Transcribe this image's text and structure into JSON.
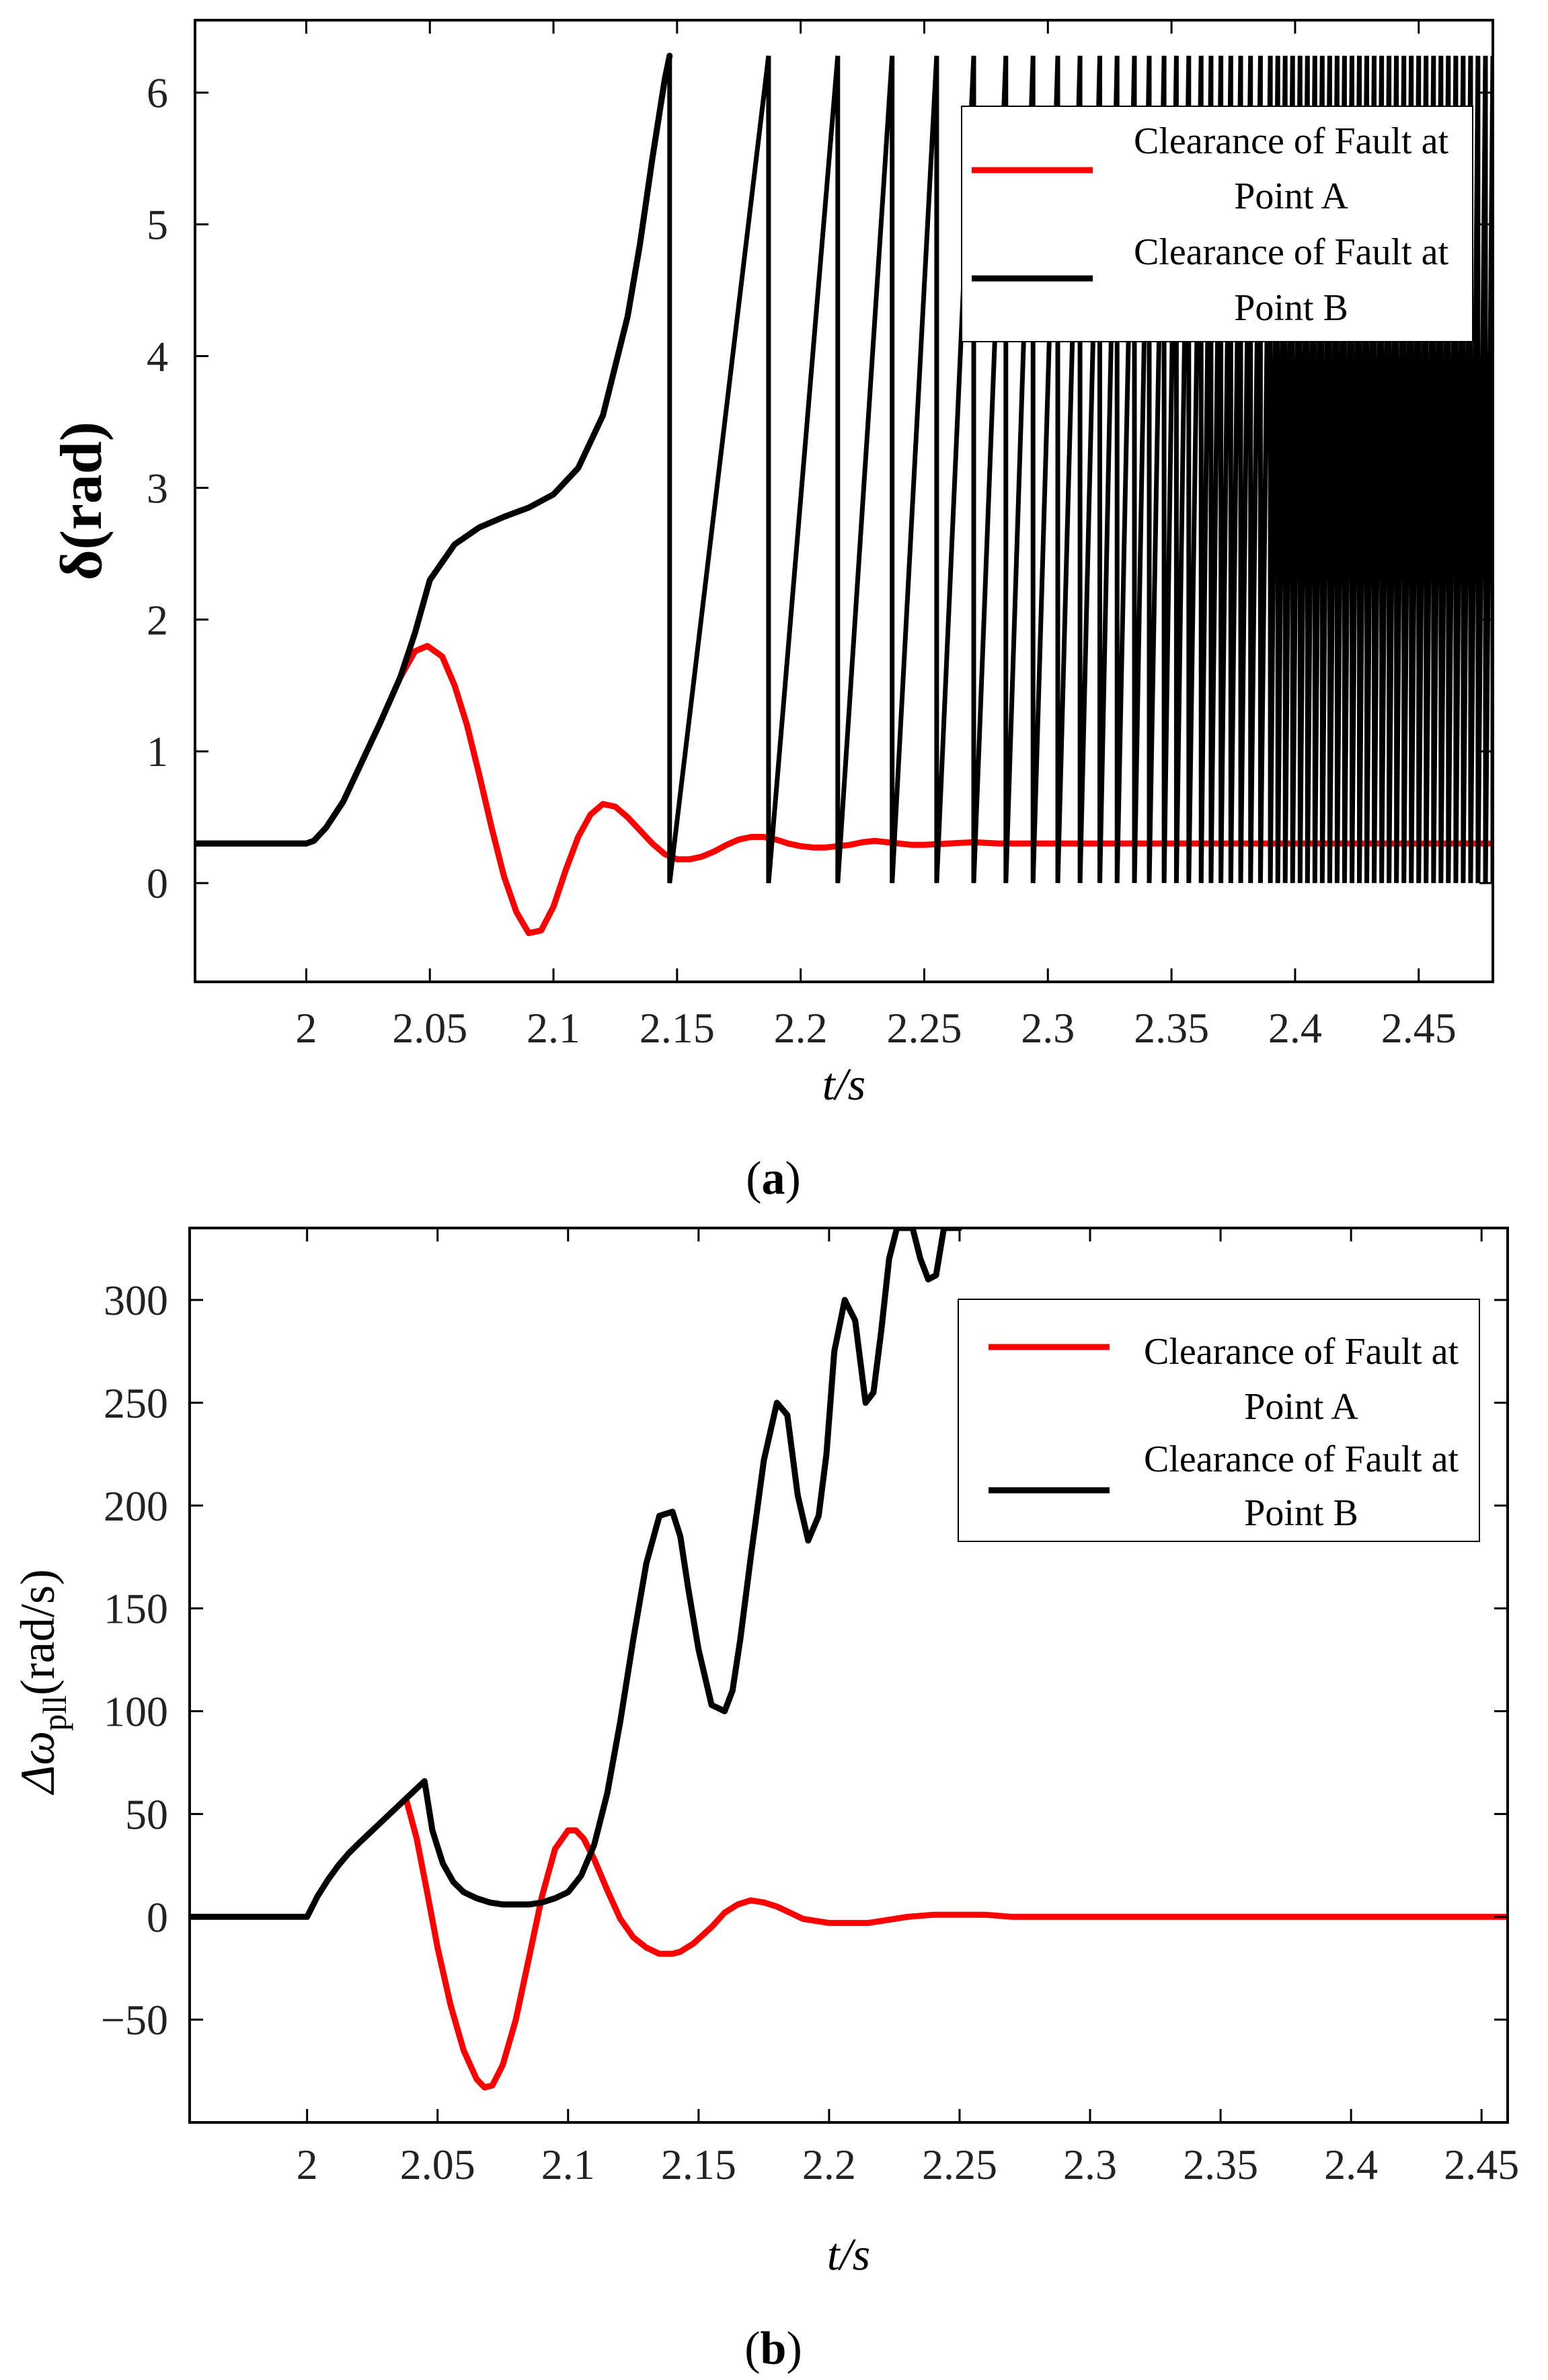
{
  "chart_data": [
    {
      "type": "line",
      "panel_label": "a",
      "title": "",
      "xlabel": "t/s",
      "ylabel": "δ(rad)",
      "xlim": [
        1.955,
        2.48
      ],
      "ylim": [
        -0.75,
        6.55
      ],
      "xticks": [
        2,
        2.05,
        2.1,
        2.15,
        2.2,
        2.25,
        2.3,
        2.35,
        2.4,
        2.45
      ],
      "xtick_labels": [
        "2",
        "2.05",
        "2.1",
        "2.15",
        "2.2",
        "2.25",
        "2.3",
        "2.35",
        "2.4",
        "2.45"
      ],
      "yticks": [
        0,
        1,
        2,
        3,
        4,
        5,
        6
      ],
      "ytick_labels": [
        "0",
        "1",
        "2",
        "3",
        "4",
        "5",
        "6"
      ],
      "grid": false,
      "legend_position": "top-right",
      "series": [
        {
          "name": "Clearance of Fault at Point A",
          "legend_lines": [
            "Clearance of Fault at",
            "Point A"
          ],
          "color": "#ff0000",
          "x": [
            1.955,
            2.0,
            2.003,
            2.008,
            2.015,
            2.022,
            2.03,
            2.038,
            2.044,
            2.049,
            2.055,
            2.06,
            2.065,
            2.07,
            2.075,
            2.08,
            2.085,
            2.09,
            2.095,
            2.1,
            2.105,
            2.11,
            2.115,
            2.12,
            2.125,
            2.13,
            2.135,
            2.14,
            2.145,
            2.15,
            2.155,
            2.16,
            2.165,
            2.17,
            2.175,
            2.18,
            2.185,
            2.19,
            2.195,
            2.2,
            2.205,
            2.21,
            2.215,
            2.22,
            2.225,
            2.23,
            2.235,
            2.24,
            2.245,
            2.25,
            2.26,
            2.27,
            2.28,
            2.29,
            2.3,
            2.32,
            2.35,
            2.4,
            2.45,
            2.48
          ],
          "y": [
            0.3,
            0.3,
            0.32,
            0.42,
            0.62,
            0.9,
            1.22,
            1.56,
            1.76,
            1.8,
            1.72,
            1.5,
            1.2,
            0.82,
            0.42,
            0.05,
            -0.22,
            -0.38,
            -0.36,
            -0.18,
            0.1,
            0.35,
            0.52,
            0.6,
            0.58,
            0.5,
            0.4,
            0.3,
            0.22,
            0.18,
            0.18,
            0.2,
            0.24,
            0.29,
            0.33,
            0.35,
            0.35,
            0.33,
            0.3,
            0.28,
            0.27,
            0.27,
            0.28,
            0.29,
            0.31,
            0.32,
            0.31,
            0.3,
            0.29,
            0.29,
            0.3,
            0.31,
            0.3,
            0.3,
            0.3,
            0.3,
            0.3,
            0.3,
            0.3,
            0.3
          ]
        },
        {
          "name": "Clearance of Fault at Point B",
          "legend_lines": [
            "Clearance of Fault at",
            "Point B"
          ],
          "color": "#000000",
          "note": "after ~2.147 s the angle wraps between 0 and 2π with a shrinking period",
          "x": [
            1.955,
            2.0,
            2.003,
            2.008,
            2.015,
            2.022,
            2.03,
            2.038,
            2.044,
            2.05,
            2.06,
            2.07,
            2.08,
            2.09,
            2.1,
            2.11,
            2.12,
            2.13,
            2.135,
            2.14,
            2.145,
            2.147
          ],
          "y": [
            0.3,
            0.3,
            0.32,
            0.42,
            0.62,
            0.9,
            1.22,
            1.56,
            1.9,
            2.3,
            2.57,
            2.7,
            2.78,
            2.85,
            2.95,
            3.15,
            3.55,
            4.3,
            4.85,
            5.5,
            6.1,
            6.28
          ],
          "wrap_times": [
            2.147,
            2.187,
            2.215,
            2.237,
            2.255,
            2.27,
            2.283,
            2.294,
            2.304,
            2.313,
            2.321,
            2.328,
            2.335,
            2.341,
            2.347,
            2.352,
            2.357,
            2.362,
            2.366,
            2.37,
            2.374,
            2.378,
            2.382,
            2.386,
            2.39,
            2.393,
            2.396,
            2.399,
            2.402,
            2.405,
            2.408,
            2.411,
            2.414,
            2.417,
            2.42,
            2.423,
            2.426,
            2.429,
            2.432,
            2.435,
            2.438,
            2.441,
            2.444,
            2.447,
            2.45,
            2.453,
            2.456,
            2.459,
            2.462,
            2.465,
            2.468,
            2.471,
            2.474,
            2.477,
            2.48
          ],
          "wrap_low": 0,
          "wrap_high": 6.28
        }
      ]
    },
    {
      "type": "line",
      "panel_label": "b",
      "title": "",
      "xlabel": "t/s",
      "ylabel_main": "Δω",
      "ylabel_sub": "pll",
      "ylabel_tail": "(rad/s)",
      "xlim": [
        1.955,
        2.46
      ],
      "ylim": [
        -100,
        335
      ],
      "xticks": [
        2,
        2.05,
        2.1,
        2.15,
        2.2,
        2.25,
        2.3,
        2.35,
        2.4,
        2.45
      ],
      "xtick_labels": [
        "2",
        "2.05",
        "2.1",
        "2.15",
        "2.2",
        "2.25",
        "2.3",
        "2.35",
        "2.4",
        "2.45"
      ],
      "yticks": [
        -50,
        0,
        50,
        100,
        150,
        200,
        250,
        300
      ],
      "ytick_labels": [
        "−50",
        "0",
        "50",
        "100",
        "150",
        "200",
        "250",
        "300"
      ],
      "grid": false,
      "legend_position": "top-right",
      "series": [
        {
          "name": "Clearance of Fault at Point A",
          "legend_lines": [
            "Clearance of Fault at",
            "Point A"
          ],
          "color": "#ff0000",
          "x": [
            2.038,
            2.042,
            2.046,
            2.05,
            2.055,
            2.06,
            2.065,
            2.068,
            2.071,
            2.075,
            2.08,
            2.085,
            2.09,
            2.095,
            2.1,
            2.103,
            2.106,
            2.11,
            2.115,
            2.12,
            2.125,
            2.13,
            2.135,
            2.14,
            2.143,
            2.148,
            2.155,
            2.16,
            2.165,
            2.17,
            2.175,
            2.18,
            2.185,
            2.19,
            2.2,
            2.21,
            2.215,
            2.22,
            2.23,
            2.24,
            2.25,
            2.26,
            2.27,
            2.28,
            2.3,
            2.35,
            2.4,
            2.46
          ],
          "y": [
            57,
            38,
            12,
            -15,
            -43,
            -65,
            -79,
            -83,
            -82,
            -72,
            -50,
            -20,
            10,
            33,
            42,
            42,
            38,
            28,
            13,
            -1,
            -10,
            -15,
            -18,
            -18,
            -17,
            -13,
            -5,
            2,
            6,
            8,
            7,
            5,
            2,
            -1,
            -3,
            -3,
            -3,
            -2,
            0,
            1,
            1,
            1,
            0,
            0,
            0,
            0,
            0,
            0
          ]
        },
        {
          "name": "Clearance of Fault at Point B",
          "legend_lines": [
            "Clearance of Fault at",
            "Point B"
          ],
          "color": "#000000",
          "x": [
            1.955,
            2.0,
            2.004,
            2.008,
            2.012,
            2.016,
            2.02,
            2.025,
            2.03,
            2.035,
            2.04,
            2.045,
            2.048,
            2.052,
            2.056,
            2.06,
            2.065,
            2.07,
            2.075,
            2.08,
            2.085,
            2.09,
            2.095,
            2.1,
            2.105,
            2.11,
            2.115,
            2.12,
            2.125,
            2.13,
            2.135,
            2.14,
            2.143,
            2.146,
            2.15,
            2.155,
            2.16,
            2.163,
            2.166,
            2.17,
            2.175,
            2.18,
            2.184,
            2.188,
            2.192,
            2.196,
            2.199,
            2.202,
            2.206,
            2.21,
            2.214,
            2.217,
            2.22,
            2.223,
            2.226,
            2.229,
            2.232,
            2.235,
            2.238,
            2.241,
            2.244,
            2.247,
            2.25
          ],
          "y": [
            0,
            0,
            10,
            18,
            25,
            31,
            36,
            42,
            48,
            54,
            60,
            66,
            42,
            26,
            17,
            12,
            9,
            7,
            6,
            6,
            6,
            7,
            9,
            12,
            20,
            35,
            60,
            95,
            135,
            172,
            195,
            197,
            185,
            160,
            130,
            103,
            100,
            110,
            135,
            175,
            222,
            250,
            244,
            205,
            183,
            195,
            225,
            275,
            300,
            290,
            250,
            255,
            285,
            320,
            335,
            335,
            335,
            320,
            310,
            312,
            335,
            335,
            335
          ]
        }
      ]
    }
  ]
}
